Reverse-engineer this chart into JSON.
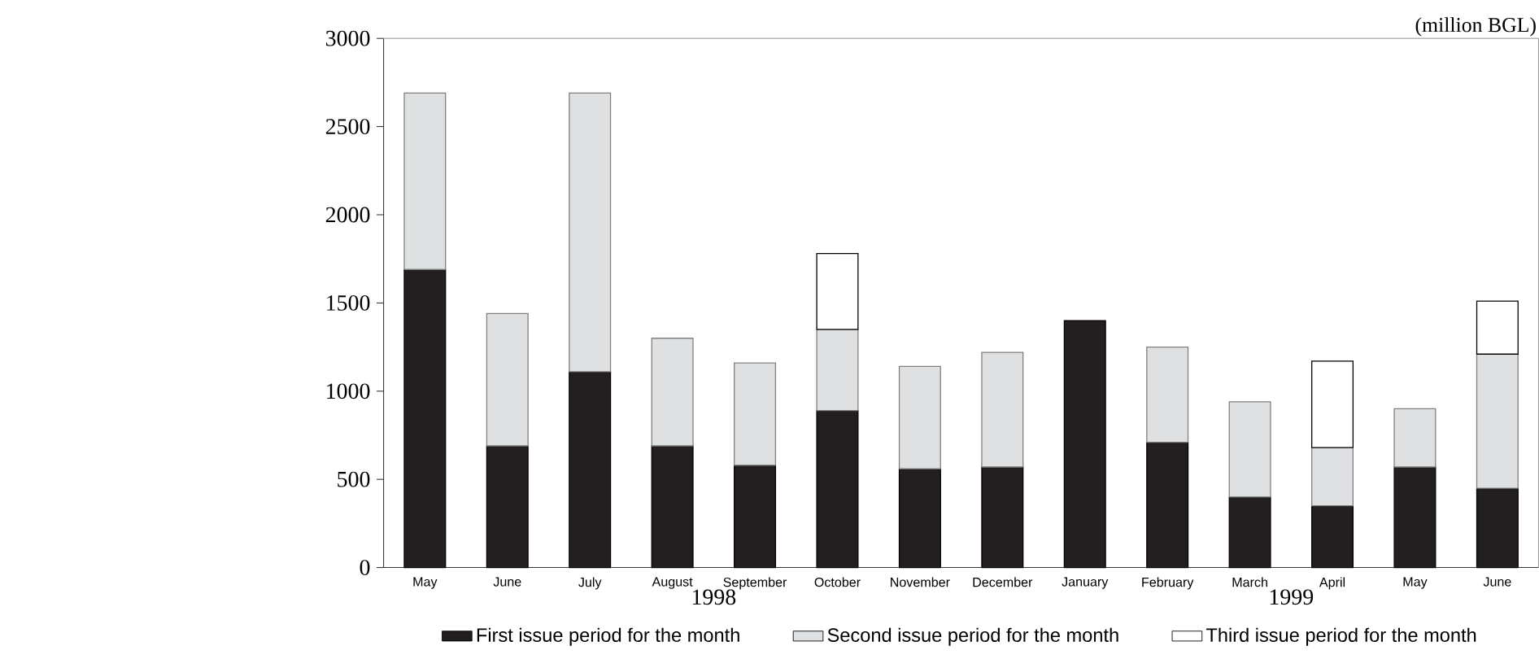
{
  "chart_data": {
    "type": "bar",
    "stacked": true,
    "ylabel": "(million BGL)",
    "categories": [
      "May",
      "June",
      "July",
      "August",
      "September",
      "October",
      "November",
      "December",
      "January",
      "February",
      "March",
      "April",
      "May",
      "June"
    ],
    "series": [
      {
        "name": "First issue period for the month",
        "color": "#231f20",
        "values": [
          1690,
          690,
          1110,
          690,
          580,
          890,
          560,
          570,
          1400,
          710,
          400,
          350,
          570,
          450
        ]
      },
      {
        "name": "Second issue period for the month",
        "color": "#dfe0e2",
        "values": [
          1000,
          750,
          1580,
          610,
          580,
          460,
          580,
          650,
          null,
          540,
          540,
          330,
          330,
          760
        ]
      },
      {
        "name": "Third issue period for the month",
        "color": "#ffffff",
        "values": [
          null,
          null,
          null,
          null,
          null,
          430,
          null,
          null,
          null,
          null,
          null,
          490,
          null,
          300
        ]
      }
    ],
    "annotations": [
      "1998",
      "1999"
    ],
    "ylim": [
      0,
      3000
    ],
    "yticks": [
      0,
      500,
      1000,
      1500,
      2000,
      2500,
      3000
    ],
    "legend": "bottom"
  }
}
